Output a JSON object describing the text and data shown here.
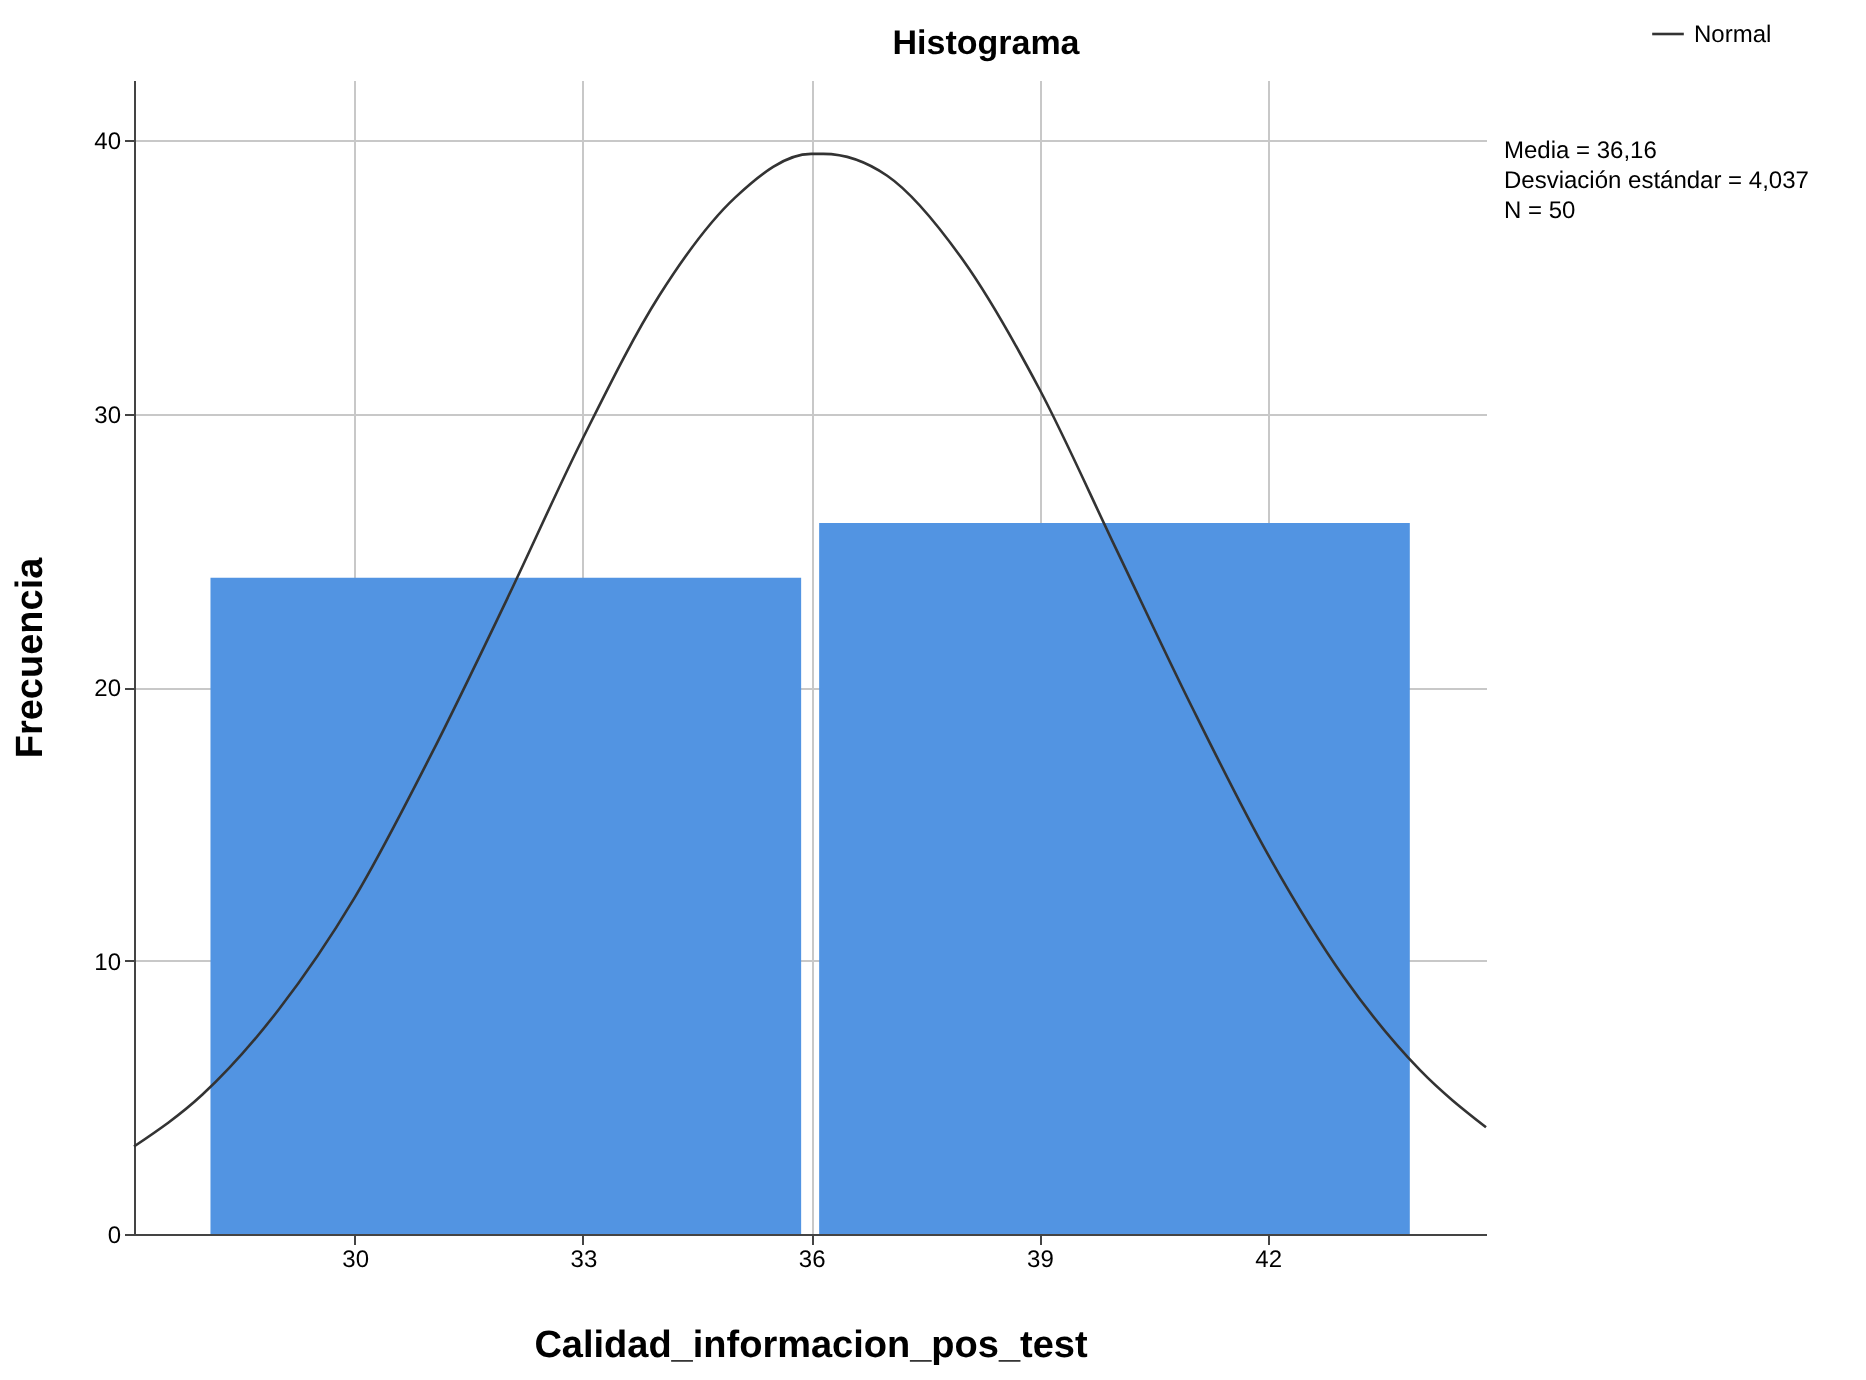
{
  "chart_data": {
    "type": "histogram",
    "title": "Histograma",
    "xlabel": "Calidad_informacion_pos_test",
    "ylabel": "Frecuencia",
    "bins": [
      28,
      36,
      44
    ],
    "values": [
      24,
      26
    ],
    "color": "#5294e2",
    "series": [
      {
        "name": "Normal",
        "type": "line",
        "color": "#333333",
        "x": [
          27.1,
          28,
          29,
          30,
          31,
          32,
          33,
          34,
          35,
          36,
          36.16,
          37,
          38,
          39,
          40,
          41,
          42,
          43,
          44,
          44.87
        ],
        "values": [
          3.2,
          5.1,
          8.2,
          12.3,
          17.5,
          23.2,
          29.1,
          34.3,
          37.9,
          39.5,
          39.5,
          38.7,
          35.6,
          30.9,
          25.1,
          19.3,
          13.9,
          9.4,
          6.0,
          3.9
        ]
      }
    ],
    "xlim": [
      27.1,
      44.87
    ],
    "xticks": [
      30,
      33,
      36,
      39,
      42
    ],
    "ylim": [
      0,
      42.2
    ],
    "yticks": [
      0,
      10,
      20,
      30,
      40
    ],
    "grid": true,
    "legend": "top right",
    "annotations": [
      "Media = 36,16",
      "Desviación estándar = 4,037",
      "N = 50"
    ]
  }
}
